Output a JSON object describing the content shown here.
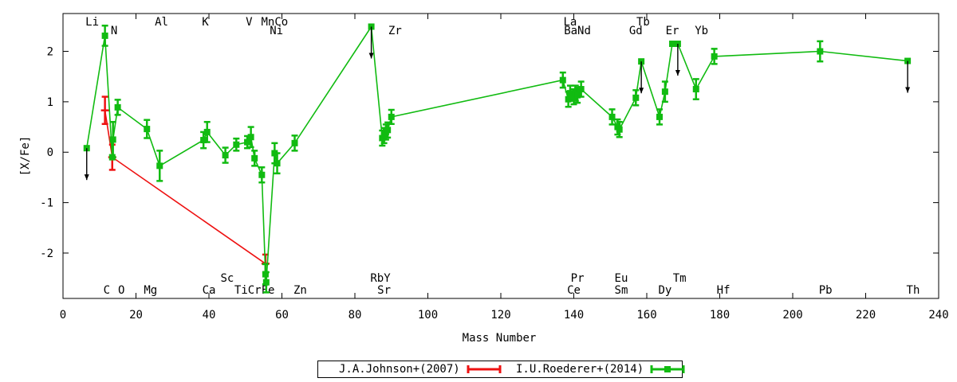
{
  "chart_data": {
    "type": "line",
    "xlabel": "Mass Number",
    "ylabel": "[X/Fe]",
    "xlim": [
      0,
      240
    ],
    "ylim": [
      -2.9,
      2.75
    ],
    "xticks": [
      0,
      20,
      40,
      60,
      80,
      100,
      120,
      140,
      160,
      180,
      200,
      220,
      240
    ],
    "yticks": [
      -2,
      -1,
      0,
      1,
      2
    ],
    "grid": false,
    "legend_position": "bottom",
    "legend": [
      {
        "label": "J.A.Johnson+(2007)",
        "color": "#ee1111"
      },
      {
        "label": "I.U.Roederer+(2014)",
        "color": "#11bb11"
      }
    ],
    "series": [
      {
        "name": "J.A.Johnson+(2007)",
        "color": "#ee1111",
        "x": [
          11.5,
          13.5,
          55.5
        ],
        "y": [
          0.83,
          -0.1,
          -2.21
        ],
        "err": [
          0.27,
          0.25,
          0.18
        ]
      },
      {
        "name": "I.U.Roederer+(2014)",
        "color": "#11bb11",
        "x": [
          6.5,
          11.5,
          13.5,
          13.7,
          15,
          23,
          26.5,
          38.5,
          39.5,
          44.5,
          47.5,
          50.5,
          51.5,
          52.5,
          54.5,
          55.5,
          55.7,
          58,
          58.7,
          63.5,
          84.5,
          87.5,
          88,
          88.5,
          89,
          90,
          137,
          138.5,
          139,
          140,
          140.5,
          141,
          142,
          150.5,
          152,
          152.5,
          157,
          158.5,
          163.5,
          165,
          167,
          168.5,
          173.5,
          178.5,
          207.5,
          231.5
        ],
        "y": [
          0.08,
          2.31,
          -0.1,
          0.25,
          0.89,
          0.46,
          -0.27,
          0.24,
          0.4,
          -0.06,
          0.15,
          0.2,
          0.3,
          -0.12,
          -0.45,
          -2.42,
          -2.58,
          -0.02,
          -0.22,
          0.18,
          2.49,
          0.28,
          0.33,
          0.4,
          0.44,
          0.7,
          1.43,
          1.05,
          1.17,
          1.1,
          1.17,
          1.13,
          1.25,
          0.7,
          0.5,
          0.45,
          1.08,
          1.8,
          0.7,
          1.2,
          2.15,
          2.15,
          1.25,
          1.9,
          2.0,
          1.81
        ],
        "err": [
          0,
          0.2,
          0,
          0.35,
          0.15,
          0.18,
          0.3,
          0.16,
          0.2,
          0.15,
          0.12,
          0.12,
          0.2,
          0.15,
          0.15,
          0.2,
          0.2,
          0.2,
          0.2,
          0.15,
          0,
          0.15,
          0.15,
          0.15,
          0.15,
          0.14,
          0.15,
          0.15,
          0.15,
          0.15,
          0.15,
          0.15,
          0.15,
          0.15,
          0.15,
          0.15,
          0.15,
          0,
          0.15,
          0.2,
          0,
          0,
          0.2,
          0.15,
          0.2,
          0
        ]
      }
    ],
    "upper_limits": [
      {
        "x": 6.5,
        "y": 0.08
      },
      {
        "x": 84.5,
        "y": 2.49
      },
      {
        "x": 158.5,
        "y": 1.8
      },
      {
        "x": 168.5,
        "y": 2.15
      },
      {
        "x": 231.5,
        "y": 1.81
      }
    ],
    "element_labels": {
      "top": [
        {
          "text": "Li",
          "x": 8,
          "row": 0
        },
        {
          "text": "N",
          "x": 14,
          "row": 1
        },
        {
          "text": "Al",
          "x": 27,
          "row": 0
        },
        {
          "text": "K",
          "x": 39,
          "row": 0
        },
        {
          "text": "V",
          "x": 51,
          "row": 0
        },
        {
          "text": "MnCo",
          "x": 58,
          "row": 0
        },
        {
          "text": "Ni",
          "x": 58.5,
          "row": 1
        },
        {
          "text": "Zr",
          "x": 91,
          "row": 1
        },
        {
          "text": "La",
          "x": 139,
          "row": 0
        },
        {
          "text": "BaNd",
          "x": 141,
          "row": 1
        },
        {
          "text": "Tb",
          "x": 159,
          "row": 0
        },
        {
          "text": "Gd",
          "x": 157,
          "row": 1
        },
        {
          "text": "Er",
          "x": 167,
          "row": 1
        },
        {
          "text": "Yb",
          "x": 175,
          "row": 1
        }
      ],
      "bottom": [
        {
          "text": "Sc",
          "x": 45,
          "row": 0
        },
        {
          "text": "RbY",
          "x": 87,
          "row": 0
        },
        {
          "text": "Pr",
          "x": 141,
          "row": 0
        },
        {
          "text": "Eu",
          "x": 153,
          "row": 0
        },
        {
          "text": "Tm",
          "x": 169,
          "row": 0
        },
        {
          "text": "C",
          "x": 12,
          "row": 1
        },
        {
          "text": "O",
          "x": 16,
          "row": 1
        },
        {
          "text": "Mg",
          "x": 24,
          "row": 1
        },
        {
          "text": "Ca",
          "x": 40,
          "row": 1
        },
        {
          "text": "TiCrFe",
          "x": 52.5,
          "row": 1
        },
        {
          "text": "Zn",
          "x": 65,
          "row": 1
        },
        {
          "text": "Sr",
          "x": 88,
          "row": 1
        },
        {
          "text": "Ce",
          "x": 140,
          "row": 1
        },
        {
          "text": "Sm",
          "x": 153,
          "row": 1
        },
        {
          "text": "Dy",
          "x": 165,
          "row": 1
        },
        {
          "text": "Hf",
          "x": 181,
          "row": 1
        },
        {
          "text": "Pb",
          "x": 209,
          "row": 1
        },
        {
          "text": "Th",
          "x": 233,
          "row": 1
        }
      ]
    }
  }
}
